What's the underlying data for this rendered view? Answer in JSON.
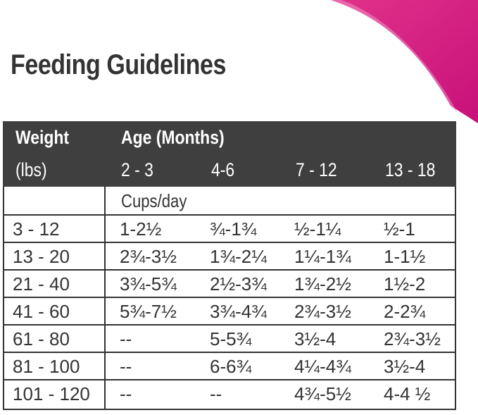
{
  "header": {
    "title": "Feeding Guidelines"
  },
  "table": {
    "weight_label": "Weight",
    "weight_unit": "(lbs)",
    "age_label": "Age (Months)",
    "ages": [
      "2 - 3",
      "4-6",
      "7 - 12",
      "13 - 18"
    ],
    "unit": "Cups/day",
    "rows": [
      [
        "3 - 12",
        "1-2½",
        "¾-1¾",
        "½-1¼",
        "½-1"
      ],
      [
        "13 - 20",
        "2¾-3½",
        "1¾-2¼",
        "1¼-1¾",
        "1-1½"
      ],
      [
        "21 - 40",
        "3¾-5¾",
        "2½-3¾",
        "1¾-2½",
        "1½-2"
      ],
      [
        "41 - 60",
        "5¾-7½",
        "3¾-4¾",
        "2¾-3½",
        "2-2¾"
      ],
      [
        "61 - 80",
        "--",
        "5-5¾",
        "3½-4",
        "2¾-3½"
      ],
      [
        "81 - 100",
        "--",
        "6-6¾",
        "4¼-4¾",
        "3½-4"
      ],
      [
        "101 - 120",
        "--",
        "--",
        "4¾-5½",
        "4-4 ½"
      ]
    ]
  }
}
